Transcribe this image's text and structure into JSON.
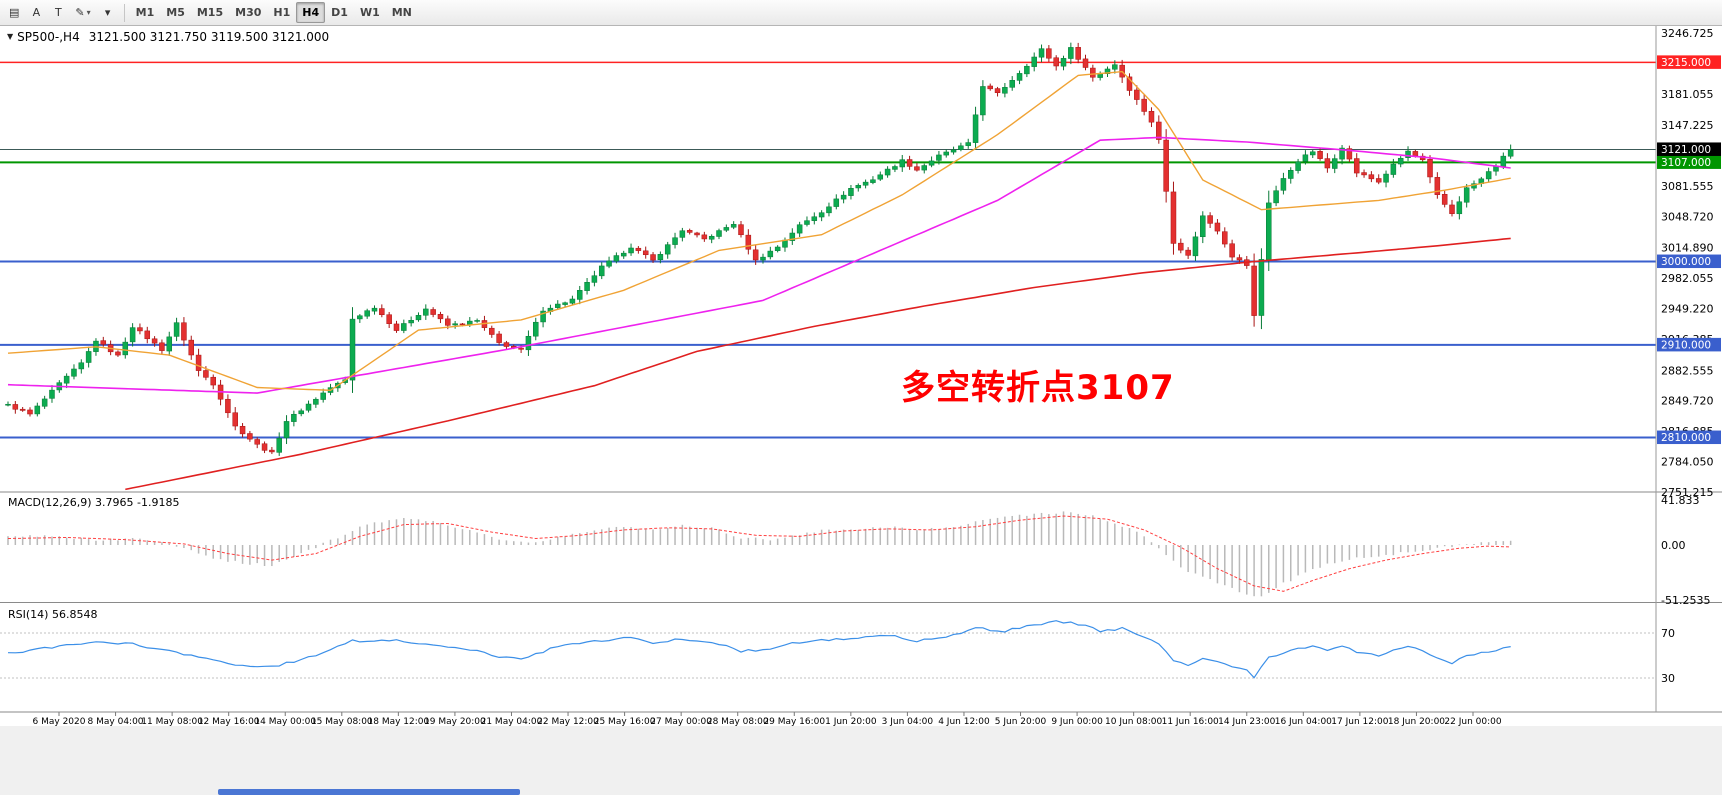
{
  "toolbar": {
    "tools": [
      {
        "name": "chart-list-icon",
        "glyph": "▤"
      },
      {
        "name": "text-tool-a",
        "glyph": "A"
      },
      {
        "name": "text-label-tool",
        "glyph": "T"
      },
      {
        "name": "draw-tool",
        "glyph": "✎",
        "caret": true
      },
      {
        "name": "tools-dropdown-caret",
        "glyph": "▾"
      }
    ],
    "timeframes": [
      "M1",
      "M5",
      "M15",
      "M30",
      "H1",
      "H4",
      "D1",
      "W1",
      "MN"
    ],
    "active_timeframe": "H4"
  },
  "chart": {
    "header": {
      "symbol": "SP500-,H4",
      "ohlc": "3121.500 3121.750 3119.500 3121.000"
    },
    "annotation": {
      "text": "多空转折点3107",
      "color": "#ff0000"
    },
    "current_price": {
      "value": 3121.0,
      "label": "3121.000",
      "badge_color": "#000000",
      "line_color": "#3c5a58"
    },
    "levels": [
      {
        "value": 3215.0,
        "label": "3215.000",
        "color": "#ff2222"
      },
      {
        "value": 3107.0,
        "label": "3107.000",
        "color": "#009600"
      },
      {
        "value": 3000.0,
        "label": "3000.000",
        "color": "#3a5fcd"
      },
      {
        "value": 2910.0,
        "label": "2910.000",
        "color": "#3a5fcd"
      },
      {
        "value": 2810.0,
        "label": "2810.000",
        "color": "#3a5fcd"
      }
    ],
    "price_ticks": [
      3246.725,
      3181.055,
      3147.225,
      3081.555,
      3048.72,
      3014.89,
      2982.055,
      2949.22,
      2916.385,
      2882.555,
      2849.72,
      2816.885,
      2784.05,
      2751.215
    ],
    "time_labels": [
      "6 May 2020",
      "8 May 04:00",
      "11 May 08:00",
      "12 May 16:00",
      "14 May 00:00",
      "15 May 08:00",
      "18 May 12:00",
      "19 May 20:00",
      "21 May 04:00",
      "22 May 12:00",
      "25 May 16:00",
      "27 May 00:00",
      "28 May 08:00",
      "29 May 16:00",
      "1 Jun 20:00",
      "3 Jun 04:00",
      "4 Jun 12:00",
      "5 Jun 20:00",
      "9 Jun 00:00",
      "10 Jun 08:00",
      "11 Jun 16:00",
      "14 Jun 23:00",
      "16 Jun 04:00",
      "17 Jun 12:00",
      "18 Jun 20:00",
      "22 Jun 00:00"
    ]
  },
  "macd": {
    "title": "MACD(12,26,9)",
    "values": "3.7965 -1.9185",
    "axis_ticks": [
      {
        "v": 41.833,
        "label": "41.833"
      },
      {
        "v": 0,
        "label": "0.00"
      },
      {
        "v": -51.2535,
        "label": "-51.2535"
      }
    ]
  },
  "rsi": {
    "title": "RSI(14)",
    "value": "56.8548",
    "levels": [
      {
        "v": 70,
        "label": "70"
      },
      {
        "v": 30,
        "label": "30"
      }
    ]
  },
  "colors": {
    "up_candle": "#0cab50",
    "up_stroke": "#077a36",
    "down_candle": "#e33030",
    "down_stroke": "#a81414",
    "ma_fast_orange": "#f0a335",
    "ma_mid_magenta": "#ee22ee",
    "ma_slow_red": "#e02020",
    "macd_hist": "#b9b9b9",
    "macd_signal": "#ff4040",
    "rsi_line": "#3b8fe8",
    "axis_text": "#000000",
    "separator": "#8a8a8a",
    "footer_scrollbar": "#4a76d4"
  },
  "chart_data": {
    "type": "candlestick",
    "symbol": "SP500",
    "timeframe": "H4",
    "bars": 206,
    "visible_price_range": [
      2751.215,
      3246.725
    ],
    "visible_macd_range": [
      -51.2535,
      41.833
    ],
    "close_path_anchors": [
      [
        0,
        2845
      ],
      [
        3,
        2835
      ],
      [
        7,
        2868
      ],
      [
        10,
        2890
      ],
      [
        12,
        2915
      ],
      [
        15,
        2898
      ],
      [
        17,
        2930
      ],
      [
        21,
        2905
      ],
      [
        23,
        2933
      ],
      [
        26,
        2882
      ],
      [
        28,
        2868
      ],
      [
        31,
        2822
      ],
      [
        34,
        2802
      ],
      [
        36,
        2793
      ],
      [
        38,
        2828
      ],
      [
        41,
        2846
      ],
      [
        44,
        2864
      ],
      [
        46,
        2872
      ],
      [
        47,
        2938
      ],
      [
        50,
        2951
      ],
      [
        53,
        2926
      ],
      [
        57,
        2949
      ],
      [
        60,
        2931
      ],
      [
        64,
        2936
      ],
      [
        67,
        2912
      ],
      [
        70,
        2904
      ],
      [
        73,
        2948
      ],
      [
        77,
        2959
      ],
      [
        81,
        2994
      ],
      [
        85,
        3016
      ],
      [
        88,
        3001
      ],
      [
        92,
        3034
      ],
      [
        95,
        3024
      ],
      [
        99,
        3041
      ],
      [
        102,
        3001
      ],
      [
        105,
        3016
      ],
      [
        108,
        3039
      ],
      [
        111,
        3054
      ],
      [
        115,
        3079
      ],
      [
        118,
        3089
      ],
      [
        122,
        3109
      ],
      [
        124,
        3099
      ],
      [
        127,
        3114
      ],
      [
        130,
        3124
      ],
      [
        131,
        3127
      ],
      [
        133,
        3190
      ],
      [
        135,
        3181
      ],
      [
        138,
        3204
      ],
      [
        141,
        3229
      ],
      [
        143,
        3211
      ],
      [
        145,
        3230
      ],
      [
        148,
        3199
      ],
      [
        151,
        3213
      ],
      [
        153,
        3186
      ],
      [
        156,
        3151
      ],
      [
        157,
        3131
      ],
      [
        159,
        3021
      ],
      [
        161,
        3006
      ],
      [
        163,
        3049
      ],
      [
        165,
        3034
      ],
      [
        167,
        3006
      ],
      [
        169,
        2996
      ],
      [
        170,
        2941
      ],
      [
        172,
        3064
      ],
      [
        174,
        3089
      ],
      [
        176,
        3109
      ],
      [
        178,
        3119
      ],
      [
        180,
        3101
      ],
      [
        182,
        3124
      ],
      [
        184,
        3096
      ],
      [
        187,
        3086
      ],
      [
        189,
        3104
      ],
      [
        191,
        3119
      ],
      [
        193,
        3109
      ],
      [
        195,
        3071
      ],
      [
        197,
        3052
      ],
      [
        199,
        3079
      ],
      [
        201,
        3089
      ],
      [
        203,
        3104
      ],
      [
        205,
        3121
      ]
    ],
    "ma_orange_anchors": [
      [
        0,
        2901
      ],
      [
        12,
        2908
      ],
      [
        22,
        2899
      ],
      [
        34,
        2864
      ],
      [
        44,
        2861
      ],
      [
        56,
        2926
      ],
      [
        70,
        2937
      ],
      [
        84,
        2969
      ],
      [
        97,
        3012
      ],
      [
        111,
        3029
      ],
      [
        122,
        3072
      ],
      [
        135,
        3137
      ],
      [
        146,
        3201
      ],
      [
        152,
        3205
      ],
      [
        157,
        3164
      ],
      [
        163,
        3088
      ],
      [
        171,
        3056
      ],
      [
        179,
        3061
      ],
      [
        187,
        3066
      ],
      [
        196,
        3077
      ],
      [
        205,
        3090
      ]
    ],
    "ma_magenta_anchors": [
      [
        0,
        2867
      ],
      [
        34,
        2858
      ],
      [
        68,
        2905
      ],
      [
        103,
        2958
      ],
      [
        135,
        3066
      ],
      [
        149,
        3131
      ],
      [
        157,
        3134
      ],
      [
        169,
        3129
      ],
      [
        183,
        3120
      ],
      [
        194,
        3112
      ],
      [
        205,
        3101
      ]
    ],
    "ma_red_anchors": [
      [
        16,
        2754
      ],
      [
        40,
        2792
      ],
      [
        60,
        2828
      ],
      [
        80,
        2866
      ],
      [
        94,
        2903
      ],
      [
        110,
        2930
      ],
      [
        125,
        2952
      ],
      [
        140,
        2972
      ],
      [
        155,
        2988
      ],
      [
        170,
        3000
      ],
      [
        185,
        3010
      ],
      [
        195,
        3017
      ],
      [
        205,
        3025
      ]
    ],
    "macd_hist_anchors": [
      [
        0,
        7
      ],
      [
        6,
        9
      ],
      [
        12,
        4
      ],
      [
        18,
        6
      ],
      [
        24,
        -2
      ],
      [
        28,
        -12
      ],
      [
        32,
        -17
      ],
      [
        36,
        -19
      ],
      [
        40,
        -8
      ],
      [
        44,
        4
      ],
      [
        48,
        16
      ],
      [
        52,
        24
      ],
      [
        56,
        25
      ],
      [
        60,
        18
      ],
      [
        64,
        12
      ],
      [
        68,
        4
      ],
      [
        72,
        2
      ],
      [
        76,
        8
      ],
      [
        80,
        14
      ],
      [
        84,
        17
      ],
      [
        88,
        15
      ],
      [
        92,
        18
      ],
      [
        96,
        16
      ],
      [
        100,
        7
      ],
      [
        104,
        5
      ],
      [
        108,
        10
      ],
      [
        112,
        14
      ],
      [
        116,
        15
      ],
      [
        120,
        17
      ],
      [
        124,
        14
      ],
      [
        128,
        16
      ],
      [
        132,
        22
      ],
      [
        136,
        26
      ],
      [
        140,
        29
      ],
      [
        144,
        30
      ],
      [
        148,
        27
      ],
      [
        152,
        18
      ],
      [
        155,
        8
      ],
      [
        157,
        -2
      ],
      [
        160,
        -22
      ],
      [
        163,
        -30
      ],
      [
        166,
        -38
      ],
      [
        169,
        -45
      ],
      [
        171,
        -48
      ],
      [
        174,
        -36
      ],
      [
        177,
        -26
      ],
      [
        180,
        -18
      ],
      [
        184,
        -12
      ],
      [
        188,
        -9
      ],
      [
        192,
        -6
      ],
      [
        196,
        -2
      ],
      [
        200,
        2
      ],
      [
        203,
        4
      ],
      [
        205,
        3.8
      ]
    ],
    "macd_signal_anchors": [
      [
        0,
        6
      ],
      [
        8,
        7
      ],
      [
        16,
        5
      ],
      [
        24,
        1
      ],
      [
        30,
        -8
      ],
      [
        36,
        -14
      ],
      [
        42,
        -8
      ],
      [
        48,
        8
      ],
      [
        54,
        19
      ],
      [
        60,
        20
      ],
      [
        66,
        12
      ],
      [
        72,
        6
      ],
      [
        78,
        9
      ],
      [
        84,
        14
      ],
      [
        90,
        16
      ],
      [
        96,
        15
      ],
      [
        102,
        9
      ],
      [
        108,
        8
      ],
      [
        114,
        13
      ],
      [
        120,
        15
      ],
      [
        126,
        14
      ],
      [
        132,
        17
      ],
      [
        138,
        23
      ],
      [
        144,
        27
      ],
      [
        150,
        24
      ],
      [
        155,
        14
      ],
      [
        160,
        -2
      ],
      [
        165,
        -22
      ],
      [
        170,
        -38
      ],
      [
        174,
        -43
      ],
      [
        178,
        -33
      ],
      [
        183,
        -22
      ],
      [
        188,
        -14
      ],
      [
        193,
        -8
      ],
      [
        198,
        -3
      ],
      [
        202,
        -1
      ],
      [
        205,
        -1.9
      ]
    ],
    "rsi_anchors": [
      [
        0,
        52
      ],
      [
        6,
        57
      ],
      [
        12,
        62
      ],
      [
        17,
        60
      ],
      [
        21,
        55
      ],
      [
        26,
        48
      ],
      [
        31,
        42
      ],
      [
        36,
        40
      ],
      [
        41,
        48
      ],
      [
        47,
        63
      ],
      [
        52,
        64
      ],
      [
        57,
        60
      ],
      [
        62,
        57
      ],
      [
        67,
        49
      ],
      [
        70,
        47
      ],
      [
        75,
        58
      ],
      [
        81,
        63
      ],
      [
        85,
        66
      ],
      [
        88,
        60
      ],
      [
        92,
        65
      ],
      [
        96,
        62
      ],
      [
        100,
        54
      ],
      [
        104,
        56
      ],
      [
        108,
        62
      ],
      [
        112,
        64
      ],
      [
        116,
        66
      ],
      [
        120,
        68
      ],
      [
        124,
        63
      ],
      [
        128,
        66
      ],
      [
        132,
        74
      ],
      [
        136,
        72
      ],
      [
        140,
        77
      ],
      [
        143,
        80
      ],
      [
        146,
        78
      ],
      [
        149,
        72
      ],
      [
        152,
        74
      ],
      [
        155,
        66
      ],
      [
        157,
        60
      ],
      [
        159,
        45
      ],
      [
        161,
        42
      ],
      [
        163,
        48
      ],
      [
        165,
        45
      ],
      [
        167,
        40
      ],
      [
        169,
        38
      ],
      [
        170,
        31
      ],
      [
        172,
        48
      ],
      [
        174,
        52
      ],
      [
        176,
        56
      ],
      [
        178,
        58
      ],
      [
        180,
        54
      ],
      [
        182,
        59
      ],
      [
        184,
        52
      ],
      [
        187,
        50
      ],
      [
        189,
        55
      ],
      [
        191,
        58
      ],
      [
        193,
        55
      ],
      [
        195,
        47
      ],
      [
        197,
        43
      ],
      [
        199,
        50
      ],
      [
        201,
        52
      ],
      [
        203,
        55
      ],
      [
        205,
        56.85
      ]
    ]
  }
}
